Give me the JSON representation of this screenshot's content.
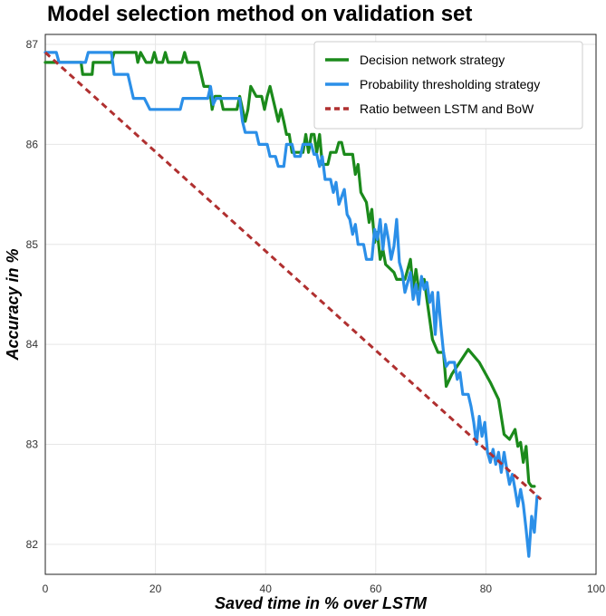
{
  "chart_data": {
    "type": "line",
    "title": "Model selection method on validation set",
    "xlabel": "Saved time in % over LSTM",
    "ylabel": "Accuracy in %",
    "xlim": [
      0,
      100
    ],
    "ylim": [
      81.7,
      87.1
    ],
    "xticks": [
      0,
      20,
      40,
      60,
      80,
      100
    ],
    "yticks": [
      82,
      83,
      84,
      85,
      86,
      87
    ],
    "grid": true,
    "legend_position": "top-right",
    "series": [
      {
        "name": "Decision network strategy",
        "color": "#1b8a1b",
        "dash": false,
        "points": [
          [
            0,
            86.82
          ],
          [
            6.5,
            86.82
          ],
          [
            6.8,
            86.7
          ],
          [
            8.5,
            86.7
          ],
          [
            8.7,
            86.82
          ],
          [
            12,
            86.82
          ],
          [
            12.5,
            86.92
          ],
          [
            16.5,
            86.92
          ],
          [
            16.8,
            86.82
          ],
          [
            17.3,
            86.92
          ],
          [
            18.3,
            86.82
          ],
          [
            19.3,
            86.82
          ],
          [
            19.8,
            86.92
          ],
          [
            20.3,
            86.82
          ],
          [
            21.3,
            86.82
          ],
          [
            21.8,
            86.92
          ],
          [
            22.3,
            86.82
          ],
          [
            24.8,
            86.82
          ],
          [
            25.3,
            86.92
          ],
          [
            25.8,
            86.82
          ],
          [
            27.8,
            86.82
          ],
          [
            28.8,
            86.58
          ],
          [
            29.8,
            86.58
          ],
          [
            30.3,
            86.35
          ],
          [
            30.8,
            86.48
          ],
          [
            31.8,
            86.48
          ],
          [
            32.3,
            86.35
          ],
          [
            34.8,
            86.35
          ],
          [
            35.3,
            86.48
          ],
          [
            36.3,
            86.23
          ],
          [
            36.8,
            86.35
          ],
          [
            37.3,
            86.58
          ],
          [
            38.3,
            86.48
          ],
          [
            39.3,
            86.48
          ],
          [
            39.8,
            86.35
          ],
          [
            40.3,
            86.48
          ],
          [
            40.8,
            86.58
          ],
          [
            41.8,
            86.35
          ],
          [
            42.3,
            86.23
          ],
          [
            42.8,
            86.35
          ],
          [
            43.3,
            86.23
          ],
          [
            43.8,
            86.1
          ],
          [
            44.3,
            86.1
          ],
          [
            44.8,
            85.92
          ],
          [
            46.8,
            85.92
          ],
          [
            47.3,
            86.1
          ],
          [
            47.8,
            85.92
          ],
          [
            48.3,
            86.1
          ],
          [
            48.8,
            86.1
          ],
          [
            49.3,
            85.92
          ],
          [
            49.8,
            86.1
          ],
          [
            50.3,
            85.8
          ],
          [
            51.3,
            85.8
          ],
          [
            51.8,
            85.92
          ],
          [
            52.8,
            85.92
          ],
          [
            53.3,
            86.02
          ],
          [
            53.8,
            86.02
          ],
          [
            54.3,
            85.9
          ],
          [
            55.8,
            85.9
          ],
          [
            56.3,
            85.7
          ],
          [
            56.8,
            85.8
          ],
          [
            57.3,
            85.52
          ],
          [
            58.3,
            85.42
          ],
          [
            58.8,
            85.22
          ],
          [
            59.3,
            85.35
          ],
          [
            59.8,
            85.02
          ],
          [
            60.3,
            85.12
          ],
          [
            60.8,
            84.85
          ],
          [
            61.3,
            84.95
          ],
          [
            61.8,
            84.8
          ],
          [
            63.3,
            84.72
          ],
          [
            63.8,
            84.65
          ],
          [
            65.3,
            84.65
          ],
          [
            65.8,
            84.75
          ],
          [
            66.3,
            84.85
          ],
          [
            66.8,
            84.55
          ],
          [
            67.3,
            84.75
          ],
          [
            67.8,
            84.55
          ],
          [
            68.8,
            84.65
          ],
          [
            69.3,
            84.45
          ],
          [
            69.8,
            84.25
          ],
          [
            70.3,
            84.05
          ],
          [
            71.3,
            83.92
          ],
          [
            72.3,
            83.92
          ],
          [
            72.8,
            83.58
          ],
          [
            73.8,
            83.7
          ],
          [
            76.8,
            83.95
          ],
          [
            78.8,
            83.82
          ],
          [
            80.8,
            83.62
          ],
          [
            82.3,
            83.45
          ],
          [
            83.3,
            83.1
          ],
          [
            84.3,
            83.05
          ],
          [
            85.3,
            83.15
          ],
          [
            85.8,
            82.98
          ],
          [
            86.3,
            83.02
          ],
          [
            86.8,
            82.82
          ],
          [
            87.3,
            82.98
          ],
          [
            87.8,
            82.62
          ],
          [
            88.3,
            82.58
          ],
          [
            88.8,
            82.58
          ]
        ]
      },
      {
        "name": "Probability thresholding strategy",
        "color": "#2b8fe8",
        "dash": false,
        "points": [
          [
            0,
            86.92
          ],
          [
            2,
            86.92
          ],
          [
            2.5,
            86.82
          ],
          [
            7.3,
            86.82
          ],
          [
            7.8,
            86.92
          ],
          [
            12,
            86.92
          ],
          [
            12.5,
            86.7
          ],
          [
            15,
            86.7
          ],
          [
            16,
            86.46
          ],
          [
            18,
            86.46
          ],
          [
            19,
            86.35
          ],
          [
            24.5,
            86.35
          ],
          [
            25,
            86.46
          ],
          [
            29.5,
            86.46
          ],
          [
            30,
            86.58
          ],
          [
            30.5,
            86.4
          ],
          [
            31,
            86.46
          ],
          [
            35.3,
            86.46
          ],
          [
            35.8,
            86.23
          ],
          [
            36.3,
            86.12
          ],
          [
            38.3,
            86.12
          ],
          [
            38.8,
            86.0
          ],
          [
            40.3,
            86.0
          ],
          [
            40.8,
            85.88
          ],
          [
            41.8,
            85.88
          ],
          [
            42.3,
            85.78
          ],
          [
            43.3,
            85.78
          ],
          [
            43.8,
            86.0
          ],
          [
            44.8,
            86.0
          ],
          [
            45.3,
            85.88
          ],
          [
            46.3,
            85.88
          ],
          [
            46.8,
            86.0
          ],
          [
            48.3,
            86.0
          ],
          [
            48.8,
            85.9
          ],
          [
            49.3,
            85.9
          ],
          [
            49.8,
            85.78
          ],
          [
            50.3,
            85.88
          ],
          [
            50.8,
            85.65
          ],
          [
            51.8,
            85.65
          ],
          [
            52.3,
            85.52
          ],
          [
            52.8,
            85.62
          ],
          [
            53.3,
            85.4
          ],
          [
            54.3,
            85.55
          ],
          [
            54.8,
            85.3
          ],
          [
            55.3,
            85.25
          ],
          [
            55.8,
            85.1
          ],
          [
            56.3,
            85.2
          ],
          [
            56.8,
            85.0
          ],
          [
            57.8,
            85.0
          ],
          [
            58.3,
            84.85
          ],
          [
            59.3,
            84.85
          ],
          [
            59.8,
            85.15
          ],
          [
            60.3,
            85.05
          ],
          [
            60.8,
            85.25
          ],
          [
            61.3,
            84.95
          ],
          [
            61.8,
            85.2
          ],
          [
            62.3,
            85.05
          ],
          [
            62.8,
            84.85
          ],
          [
            63.3,
            84.98
          ],
          [
            63.8,
            85.25
          ],
          [
            64.3,
            84.82
          ],
          [
            64.8,
            84.72
          ],
          [
            65.3,
            84.52
          ],
          [
            65.8,
            84.62
          ],
          [
            66.3,
            84.72
          ],
          [
            66.8,
            84.45
          ],
          [
            67.3,
            84.6
          ],
          [
            67.8,
            84.4
          ],
          [
            68.3,
            84.68
          ],
          [
            68.8,
            84.55
          ],
          [
            69.3,
            84.62
          ],
          [
            69.8,
            84.42
          ],
          [
            70.3,
            84.52
          ],
          [
            70.8,
            84.1
          ],
          [
            71.3,
            84.52
          ],
          [
            71.8,
            84.2
          ],
          [
            72.3,
            83.92
          ],
          [
            72.8,
            83.78
          ],
          [
            73.3,
            83.82
          ],
          [
            74.3,
            83.82
          ],
          [
            74.8,
            83.65
          ],
          [
            75.3,
            83.72
          ],
          [
            75.8,
            83.5
          ],
          [
            76.8,
            83.5
          ],
          [
            77.3,
            83.38
          ],
          [
            77.8,
            83.22
          ],
          [
            78.3,
            83.0
          ],
          [
            78.8,
            83.28
          ],
          [
            79.3,
            83.08
          ],
          [
            79.8,
            83.22
          ],
          [
            80.3,
            82.92
          ],
          [
            80.8,
            82.82
          ],
          [
            81.3,
            82.95
          ],
          [
            81.8,
            82.8
          ],
          [
            82.3,
            82.92
          ],
          [
            82.8,
            82.72
          ],
          [
            83.3,
            82.92
          ],
          [
            83.8,
            82.75
          ],
          [
            84.3,
            82.6
          ],
          [
            84.8,
            82.7
          ],
          [
            85.3,
            82.55
          ],
          [
            85.8,
            82.38
          ],
          [
            86.3,
            82.55
          ],
          [
            86.8,
            82.4
          ],
          [
            87.3,
            82.15
          ],
          [
            87.8,
            81.88
          ],
          [
            88.3,
            82.28
          ],
          [
            88.8,
            82.12
          ],
          [
            89.3,
            82.48
          ]
        ]
      },
      {
        "name": "Ratio between LSTM and BoW",
        "color": "#b03030",
        "dash": true,
        "points": [
          [
            0,
            86.92
          ],
          [
            90,
            82.45
          ]
        ]
      }
    ]
  }
}
